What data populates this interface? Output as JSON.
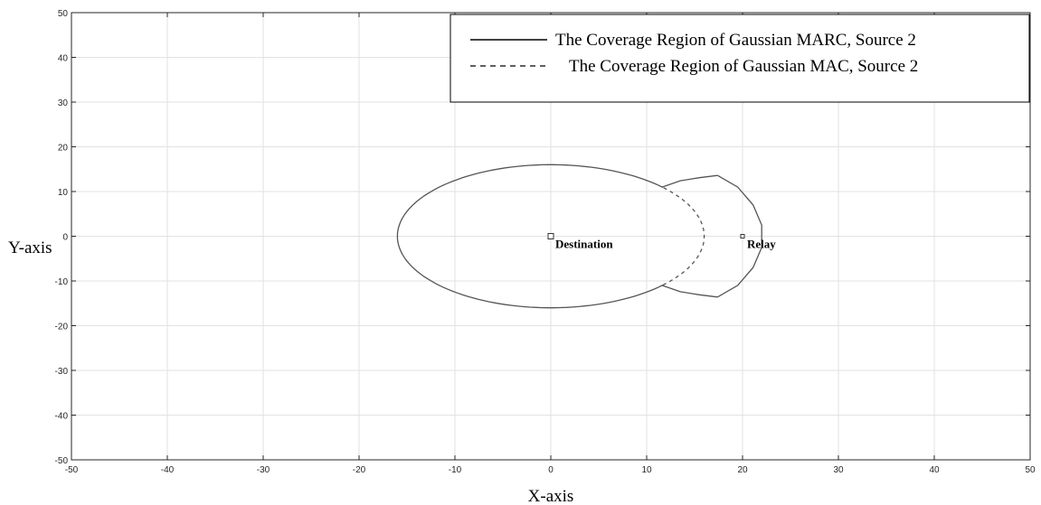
{
  "chart_data": {
    "type": "line",
    "title": "",
    "xlabel": "X-axis",
    "ylabel": "Y-axis",
    "xlim": [
      -50,
      50
    ],
    "ylim": [
      -50,
      50
    ],
    "xticks": [
      -50,
      -40,
      -30,
      -20,
      -10,
      0,
      10,
      20,
      30,
      40,
      50
    ],
    "yticks": [
      -50,
      -40,
      -30,
      -20,
      -10,
      0,
      10,
      20,
      30,
      40,
      50
    ],
    "grid": true,
    "legend_position": "top-right",
    "series": [
      {
        "name": "The Coverage Region of Gaussian MARC, Source 2",
        "style": "solid",
        "color": "#555555",
        "segments": [
          {
            "shape": "ellipse-arc",
            "center": [
              0,
              0
            ],
            "rx": 16,
            "ry": 16,
            "from_deg": 43,
            "to_deg": 317
          },
          {
            "shape": "polyline",
            "points": [
              [
                11.6,
                11
              ],
              [
                13.5,
                12.4
              ],
              [
                15.5,
                13.1
              ],
              [
                17.4,
                13.6
              ]
            ]
          },
          {
            "shape": "polyline",
            "points": [
              [
                17.4,
                13.6
              ],
              [
                19.5,
                11
              ],
              [
                21.1,
                7
              ],
              [
                22,
                2.5
              ],
              [
                22,
                0
              ],
              [
                22,
                -2.5
              ],
              [
                21.1,
                -7
              ],
              [
                19.5,
                -11
              ],
              [
                17.4,
                -13.6
              ]
            ]
          },
          {
            "shape": "polyline",
            "points": [
              [
                17.4,
                -13.6
              ],
              [
                15.5,
                -13.1
              ],
              [
                13.5,
                -12.4
              ],
              [
                11.6,
                -11
              ]
            ]
          }
        ]
      },
      {
        "name": "The Coverage Region of Gaussian MAC, Source 2",
        "style": "dashed",
        "color": "#555555",
        "segments": [
          {
            "shape": "ellipse-arc",
            "center": [
              0,
              0
            ],
            "rx": 16,
            "ry": 16,
            "from_deg": -43,
            "to_deg": 43
          }
        ]
      }
    ],
    "markers": [
      {
        "label": "Destination",
        "x": 0,
        "y": 0,
        "size": "large"
      },
      {
        "label": "Relay",
        "x": 20,
        "y": 0,
        "size": "small"
      }
    ]
  }
}
